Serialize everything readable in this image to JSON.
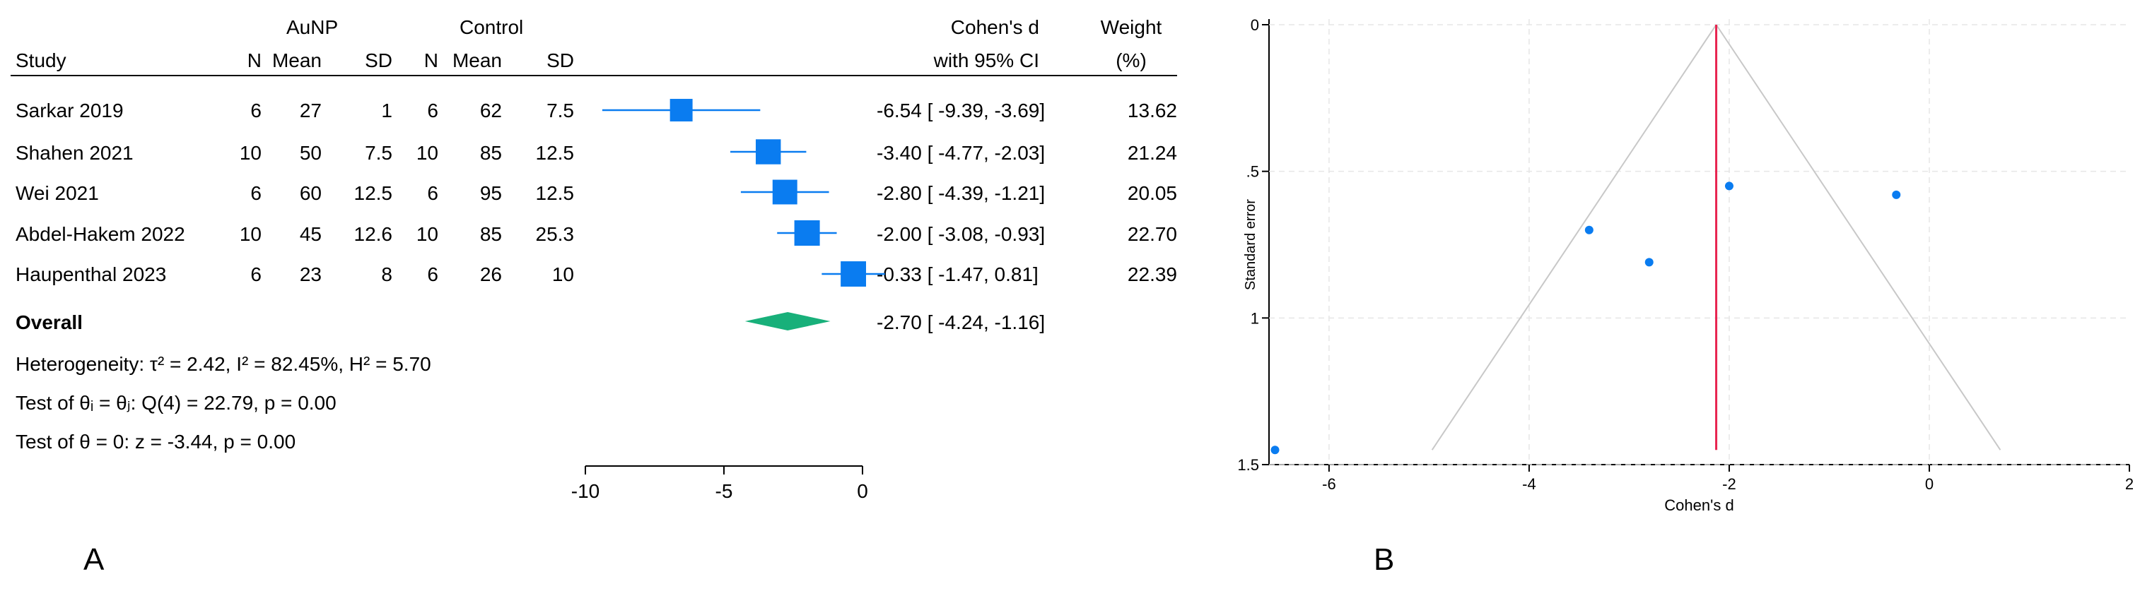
{
  "panel_a": {
    "letter": "A",
    "group_headers": {
      "treatment": "AuNP",
      "control": "Control"
    },
    "headers": {
      "study": "Study",
      "n": "N",
      "mean": "Mean",
      "sd": "SD",
      "effect_line1": "Cohen's d",
      "effect_line2": "with 95% CI",
      "weight_line1": "Weight",
      "weight_line2": "(%)"
    },
    "rows": [
      {
        "study": "Sarkar 2019",
        "n1": "6",
        "mean1": "27",
        "sd1": "1",
        "n2": "6",
        "mean2": "62",
        "sd2": "7.5",
        "ci_text": "-6.54 [ -9.39, -3.69]",
        "weight": "13.62"
      },
      {
        "study": "Shahen 2021",
        "n1": "10",
        "mean1": "50",
        "sd1": "7.5",
        "n2": "10",
        "mean2": "85",
        "sd2": "12.5",
        "ci_text": "-3.40 [ -4.77, -2.03]",
        "weight": "21.24"
      },
      {
        "study": "Wei 2021",
        "n1": "6",
        "mean1": "60",
        "sd1": "12.5",
        "n2": "6",
        "mean2": "95",
        "sd2": "12.5",
        "ci_text": "-2.80 [ -4.39, -1.21]",
        "weight": "20.05"
      },
      {
        "study": "Abdel-Hakem 2022",
        "n1": "10",
        "mean1": "45",
        "sd1": "12.6",
        "n2": "10",
        "mean2": "85",
        "sd2": "25.3",
        "ci_text": "-2.00 [ -3.08, -0.93]",
        "weight": "22.70"
      },
      {
        "study": "Haupenthal 2023",
        "n1": "6",
        "mean1": "23",
        "sd1": "8",
        "n2": "6",
        "mean2": "26",
        "sd2": "10",
        "ci_text": "-0.33 [ -1.47,  0.81]",
        "weight": "22.39"
      }
    ],
    "overall": {
      "label": "Overall",
      "ci_text": "-2.70 [ -4.24, -1.16]"
    },
    "stats": {
      "heterogeneity": "Heterogeneity: τ² = 2.42, I² = 82.45%, H² = 5.70",
      "test_theta_i": "Test of θᵢ = θⱼ: Q(4) = 22.79, p = 0.00",
      "test_theta": "Test of θ = 0: z = -3.44, p = 0.00"
    }
  },
  "panel_b": {
    "letter": "B"
  },
  "chart_data": [
    {
      "type": "forest",
      "title": "",
      "xlabel": "",
      "xlim": [
        -10,
        0
      ],
      "xticks": [
        -10,
        -5,
        0
      ],
      "xtick_labels": [
        "-10",
        "-5",
        "0"
      ],
      "studies": [
        {
          "name": "Sarkar 2019",
          "d": -6.54,
          "lower": -9.39,
          "upper": -3.69,
          "weight": 13.62
        },
        {
          "name": "Shahen 2021",
          "d": -3.4,
          "lower": -4.77,
          "upper": -2.03,
          "weight": 21.24
        },
        {
          "name": "Wei 2021",
          "d": -2.8,
          "lower": -4.39,
          "upper": -1.21,
          "weight": 20.05
        },
        {
          "name": "Abdel-Hakem 2022",
          "d": -2.0,
          "lower": -3.08,
          "upper": -0.93,
          "weight": 22.7
        },
        {
          "name": "Haupenthal 2023",
          "d": -0.33,
          "lower": -1.47,
          "upper": 0.81,
          "weight": 22.39
        }
      ],
      "overall": {
        "d": -2.7,
        "lower": -4.24,
        "upper": -1.16
      },
      "colors": {
        "marker": "#0a7cf0",
        "diamond": "#18b07a"
      }
    },
    {
      "type": "scatter",
      "title": "",
      "xlabel": "Cohen's d",
      "ylabel": "Standard error",
      "xlim": [
        -6.6,
        2
      ],
      "ylim": [
        1.5,
        0
      ],
      "y_inverted": true,
      "xticks": [
        -6,
        -4,
        -2,
        0,
        2
      ],
      "xtick_labels": [
        "-6",
        "-4",
        "-2",
        "0",
        "2"
      ],
      "yticks": [
        0,
        0.5,
        1,
        1.5
      ],
      "ytick_labels": [
        "0",
        ".5",
        "1",
        "1.5"
      ],
      "points": [
        {
          "x": -6.54,
          "y": 1.45
        },
        {
          "x": -3.4,
          "y": 0.7
        },
        {
          "x": -2.8,
          "y": 0.81
        },
        {
          "x": -2.0,
          "y": 0.55
        },
        {
          "x": -0.33,
          "y": 0.58
        }
      ],
      "reference_line": {
        "x": -2.13
      },
      "funnel_limits": {
        "apex_x": -2.13,
        "apex_y": 0,
        "base_y": 1.45,
        "left_x": -4.97,
        "right_x": 0.71
      },
      "grid": true,
      "colors": {
        "points": "#0a7cf0",
        "reference": "#e8244f",
        "funnel": "#c8c8c8",
        "grid": "#e6e6e6"
      }
    }
  ]
}
